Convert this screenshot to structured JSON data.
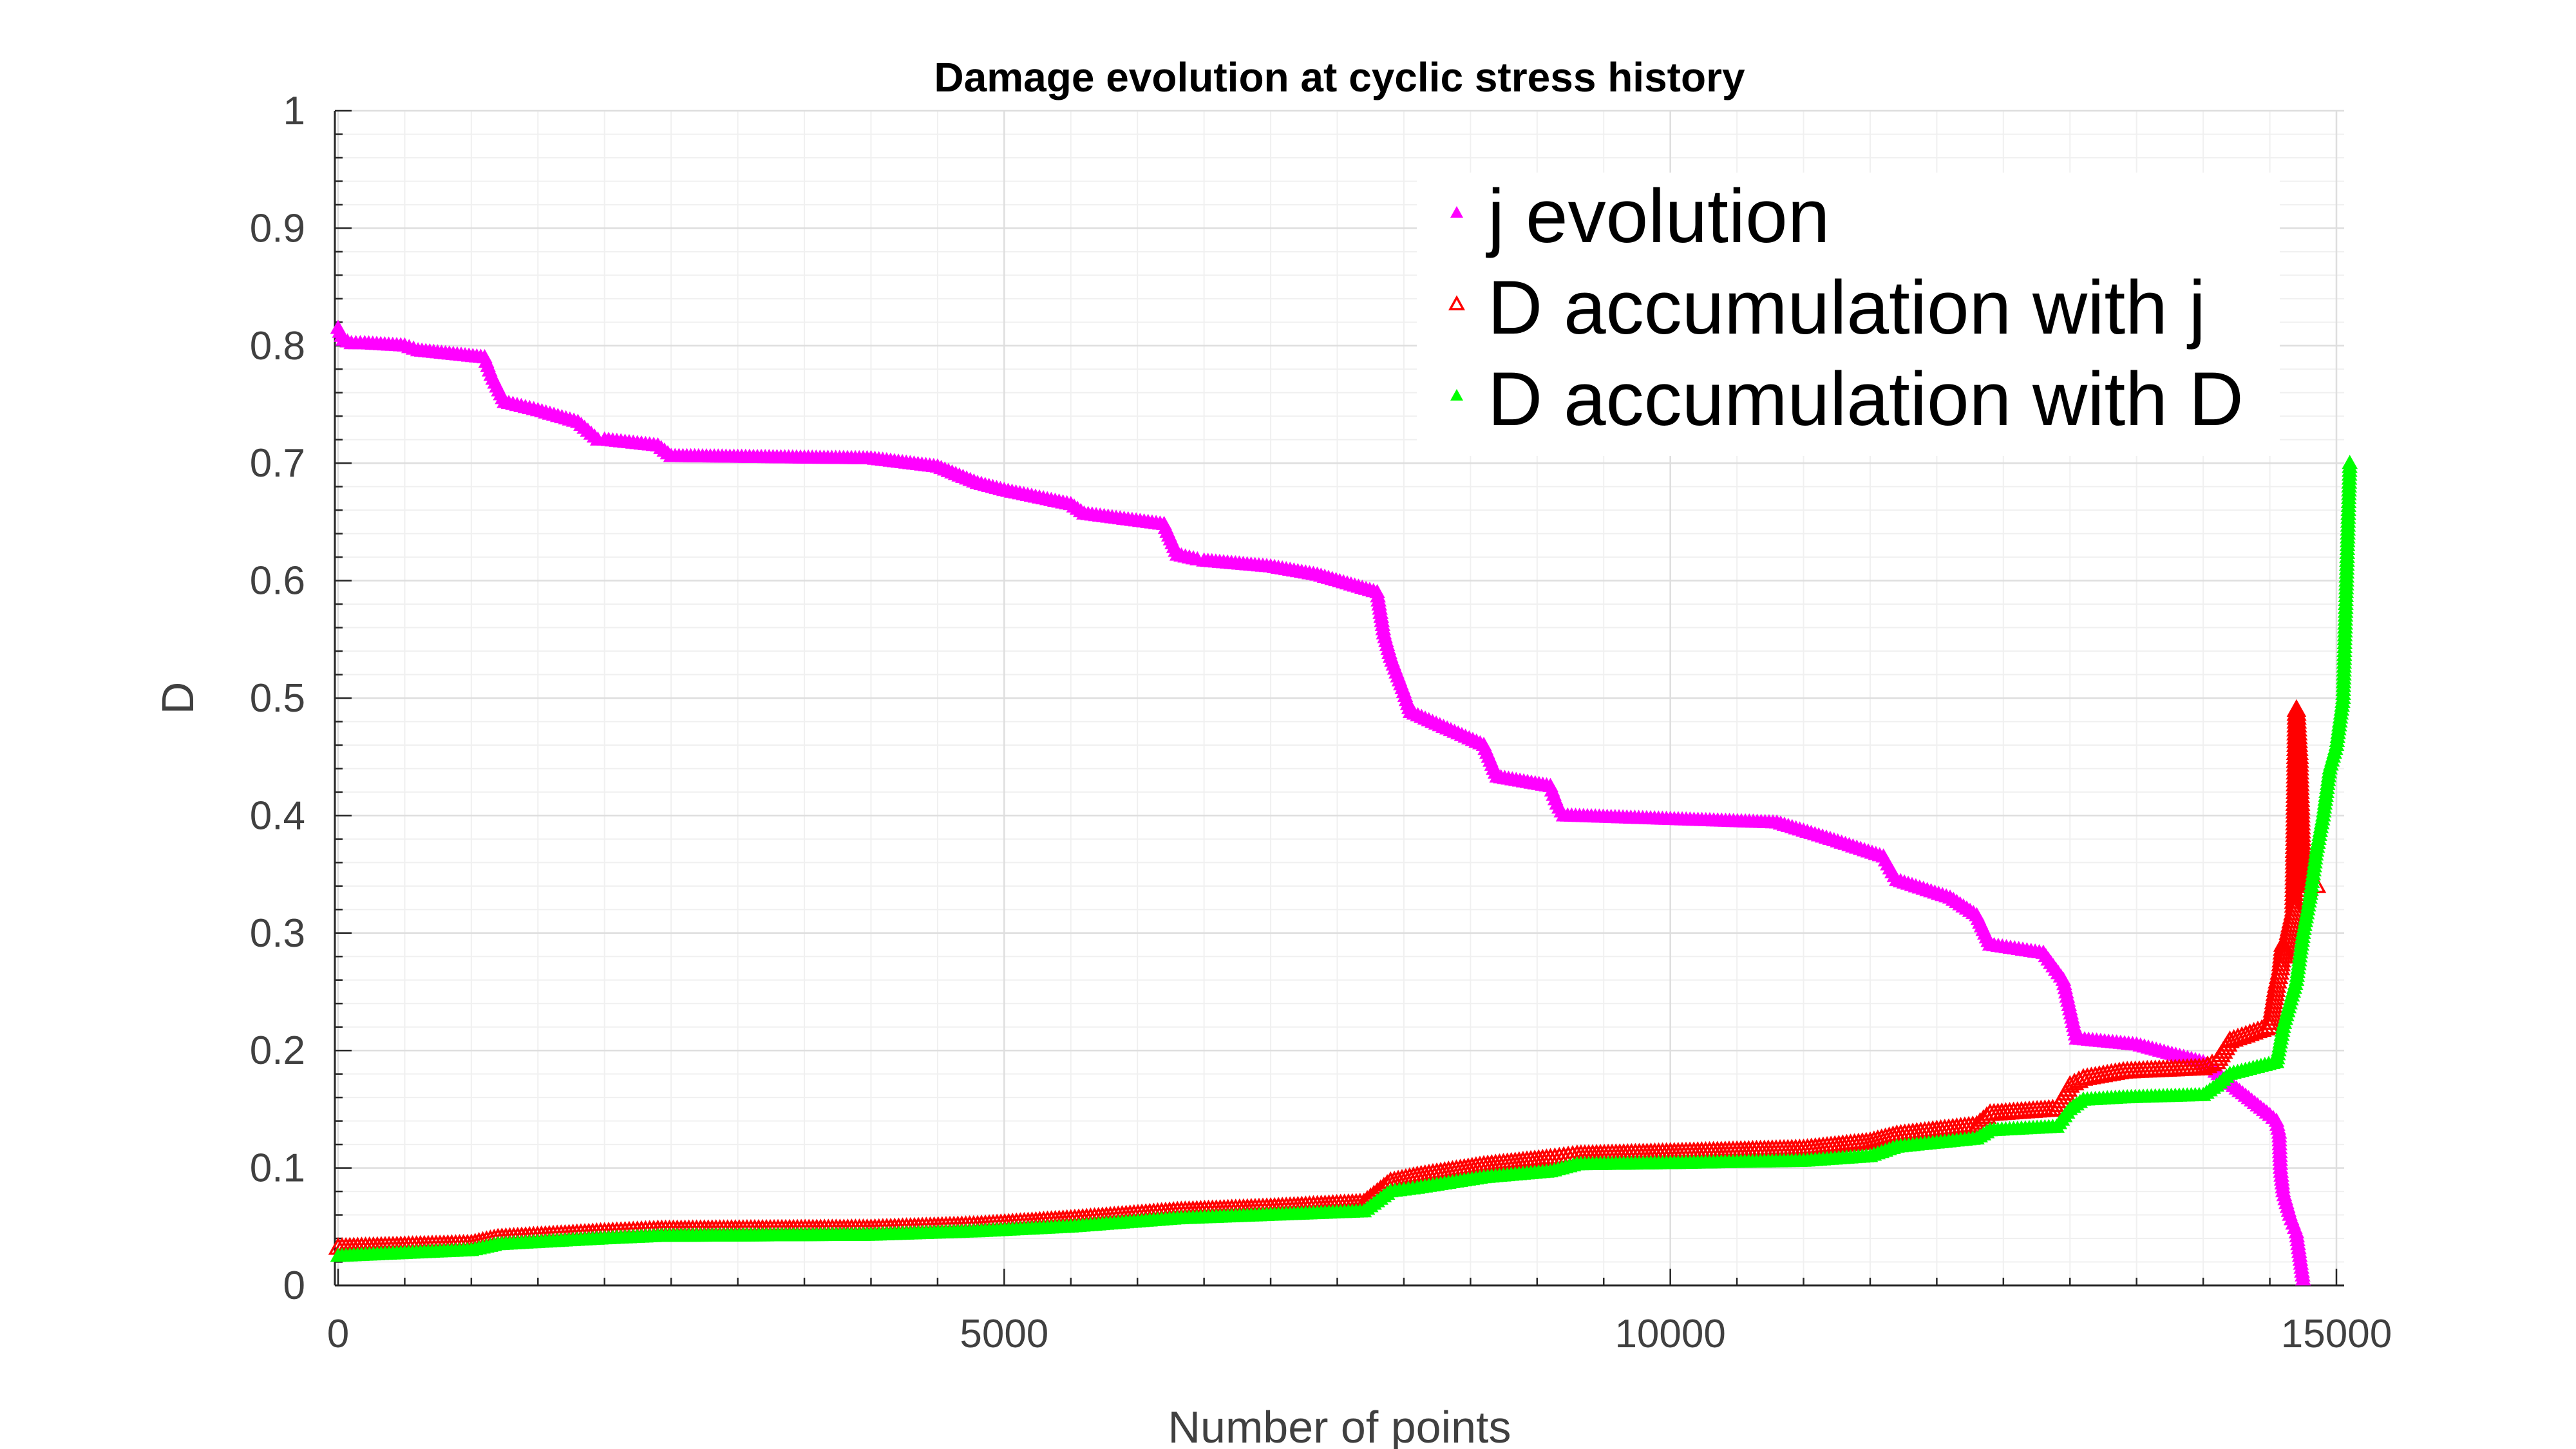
{
  "chart_data": {
    "type": "scatter",
    "title": "Damage evolution at cyclic stress history",
    "xlabel": "Number of points",
    "ylabel": "D",
    "xlim": [
      0,
      15100
    ],
    "ylim": [
      0,
      1
    ],
    "xticks": [
      0,
      5000,
      10000,
      15000
    ],
    "xtick_labels": [
      "0",
      "5000",
      "10000",
      "15000"
    ],
    "yticks": [
      0,
      0.1,
      0.2,
      0.3,
      0.4,
      0.5,
      0.6,
      0.7,
      0.8,
      0.9,
      1
    ],
    "ytick_labels": [
      "0",
      "0.1",
      "0.2",
      "0.3",
      "0.4",
      "0.5",
      "0.6",
      "0.7",
      "0.8",
      "0.9",
      "1"
    ],
    "grid": true,
    "minor_grid": true,
    "legend_position": "top-right",
    "series": [
      {
        "name": "j evolution",
        "color": "#ff00ff",
        "marker": "filled-triangle",
        "x": [
          0,
          40,
          100,
          200,
          500,
          600,
          1100,
          1150,
          1250,
          1500,
          1800,
          1950,
          2000,
          2400,
          2500,
          4000,
          4500,
          4800,
          5000,
          5500,
          5600,
          6200,
          6300,
          6450,
          6500,
          7000,
          7350,
          7800,
          7850,
          7900,
          8000,
          8050,
          8600,
          8700,
          9100,
          9150,
          9200,
          10000,
          10800,
          11200,
          11600,
          11700,
          12100,
          12300,
          12400,
          12800,
          12950,
          13000,
          13050,
          13500,
          14000,
          14500,
          14550,
          14570,
          14580,
          14600,
          14650,
          14700,
          14750
        ],
        "y": [
          0.815,
          0.805,
          0.802,
          0.802,
          0.8,
          0.796,
          0.79,
          0.775,
          0.752,
          0.745,
          0.735,
          0.72,
          0.72,
          0.715,
          0.706,
          0.704,
          0.697,
          0.683,
          0.677,
          0.665,
          0.657,
          0.648,
          0.622,
          0.618,
          0.617,
          0.612,
          0.605,
          0.59,
          0.555,
          0.535,
          0.505,
          0.488,
          0.46,
          0.433,
          0.425,
          0.41,
          0.4,
          0.397,
          0.394,
          0.38,
          0.365,
          0.345,
          0.33,
          0.315,
          0.29,
          0.283,
          0.26,
          0.235,
          0.21,
          0.205,
          0.19,
          0.145,
          0.14,
          0.13,
          0.1,
          0.08,
          0.06,
          0.045,
          0.005
        ]
      },
      {
        "name": "D accumulation with j",
        "color": "#ff0000",
        "marker": "triangle",
        "x": [
          0,
          1000,
          1200,
          2000,
          2400,
          4000,
          4800,
          5500,
          6300,
          7000,
          7700,
          7900,
          8100,
          8600,
          9100,
          9300,
          10000,
          11000,
          11500,
          11700,
          12300,
          12400,
          12900,
          13000,
          13100,
          13400,
          14000,
          14100,
          14200,
          14500,
          14550,
          14580,
          14600,
          14610,
          14640,
          14660,
          14680,
          14700,
          14720,
          14750,
          14800,
          14850
        ],
        "y": [
          0.032,
          0.035,
          0.04,
          0.045,
          0.047,
          0.048,
          0.051,
          0.056,
          0.063,
          0.066,
          0.07,
          0.088,
          0.093,
          0.102,
          0.108,
          0.111,
          0.113,
          0.116,
          0.122,
          0.128,
          0.136,
          0.146,
          0.15,
          0.17,
          0.176,
          0.182,
          0.185,
          0.19,
          0.208,
          0.22,
          0.255,
          0.27,
          0.29,
          0.28,
          0.3,
          0.31,
          0.32,
          0.49,
          0.45,
          0.33,
          0.34,
          0.34
        ]
      },
      {
        "name": "D accumulation with D",
        "color": "#00ff00",
        "marker": "filled-triangle",
        "x": [
          0,
          1000,
          1200,
          2000,
          2400,
          4000,
          4800,
          5500,
          6300,
          7000,
          7700,
          7900,
          8100,
          8600,
          9100,
          9300,
          10000,
          11000,
          11500,
          11700,
          12300,
          12400,
          12900,
          13000,
          13100,
          13400,
          14000,
          14100,
          14200,
          14550,
          14600,
          14650,
          14700,
          14750,
          14800,
          14850,
          14900,
          14950,
          15000,
          15050,
          15080,
          15090,
          15100
        ],
        "y": [
          0.025,
          0.03,
          0.035,
          0.04,
          0.042,
          0.043,
          0.046,
          0.05,
          0.057,
          0.06,
          0.063,
          0.08,
          0.083,
          0.092,
          0.097,
          0.103,
          0.104,
          0.106,
          0.11,
          0.118,
          0.125,
          0.132,
          0.135,
          0.15,
          0.158,
          0.16,
          0.162,
          0.17,
          0.18,
          0.19,
          0.22,
          0.24,
          0.26,
          0.3,
          0.33,
          0.37,
          0.4,
          0.44,
          0.46,
          0.5,
          0.62,
          0.66,
          0.7
        ]
      }
    ]
  }
}
